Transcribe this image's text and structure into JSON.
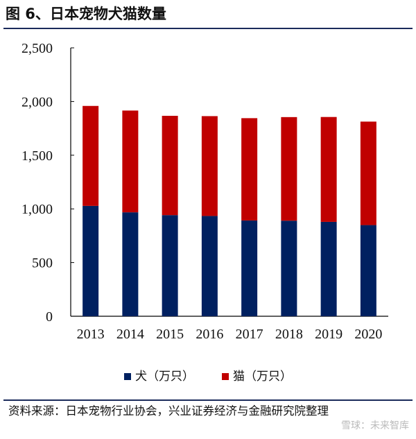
{
  "title": "图 6、日本宠物犬猫数量",
  "chart_data": {
    "type": "bar",
    "stacked": true,
    "title": "图 6、日本宠物犬猫数量",
    "categories": [
      "2013",
      "2014",
      "2015",
      "2016",
      "2017",
      "2018",
      "2019",
      "2020"
    ],
    "series": [
      {
        "name": "犬（万只）",
        "color": "#002060",
        "values": [
          1028,
          968,
          942,
          934,
          892,
          890,
          879,
          849
        ]
      },
      {
        "name": "猫（万只）",
        "color": "#C00000",
        "values": [
          931,
          948,
          925,
          930,
          953,
          965,
          977,
          964
        ]
      }
    ],
    "yticks": [
      0,
      500,
      1000,
      1500,
      2000,
      2500
    ],
    "ytick_labels": [
      "0",
      "500",
      "1,000",
      "1,500",
      "2,000",
      "2,500"
    ],
    "ylim": [
      0,
      2500
    ],
    "xlabel": "",
    "ylabel": "",
    "legend": "bottom",
    "grid": false
  },
  "source": "资料来源：日本宠物行业协会，兴业证券经济与金融研究院整理",
  "watermark": "雪球：未来智库"
}
